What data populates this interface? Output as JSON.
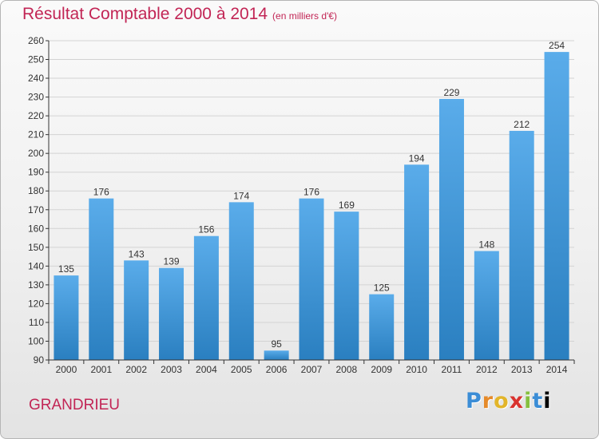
{
  "title": "Résultat Comptable 2000 à 2014",
  "subtitle": "(en milliers d'€)",
  "commune": "GRANDRIEU",
  "logo": "Proxiti",
  "colors": {
    "title": "#c22555",
    "bar_light": "#5aacea",
    "bar_dark": "#2a7fc0",
    "grid": "#d3d3d3",
    "axis": "#333333"
  },
  "chart_data": {
    "type": "bar",
    "title": "Résultat Comptable 2000 à 2014",
    "subtitle": "(en milliers d'€)",
    "categories": [
      "2000",
      "2001",
      "2002",
      "2003",
      "2004",
      "2005",
      "2006",
      "2007",
      "2008",
      "2009",
      "2010",
      "2011",
      "2012",
      "2013",
      "2014"
    ],
    "values": [
      135,
      176,
      143,
      139,
      156,
      174,
      95,
      176,
      169,
      125,
      194,
      229,
      148,
      212,
      254
    ],
    "ylim": [
      90,
      260
    ],
    "yticks": [
      90,
      100,
      110,
      120,
      130,
      140,
      150,
      160,
      170,
      180,
      190,
      200,
      210,
      220,
      230,
      240,
      250,
      260
    ],
    "grid": true,
    "data_labels": true
  }
}
